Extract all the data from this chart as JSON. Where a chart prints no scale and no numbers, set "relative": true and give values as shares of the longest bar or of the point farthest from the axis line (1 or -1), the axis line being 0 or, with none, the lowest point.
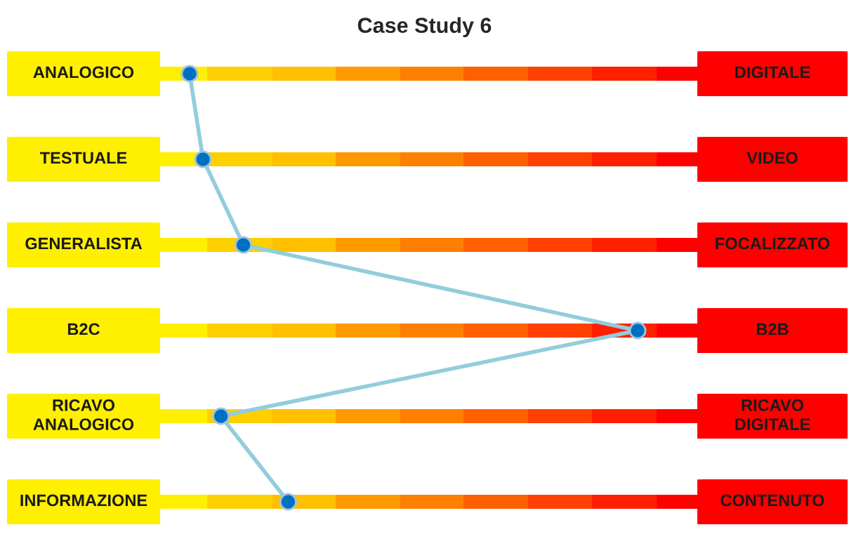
{
  "chart_data": {
    "type": "line",
    "title": "Case Study 6",
    "orientation": "horizontal",
    "relative": true,
    "marker": "circle",
    "line_style": "solid",
    "legend": false,
    "categories": [
      "ANALOGICO",
      "TESTUALE",
      "GENERALISTA",
      "B2C",
      "RICAVO\nANALOGICO",
      "INFORMAZIONE"
    ],
    "y2_categories": [
      "DIGITALE",
      "VIDEO",
      "FOCALIZZATO",
      "B2B",
      "RICAVO\nDIGITALE",
      "CONTENUTO"
    ],
    "series": [
      {
        "color": "#92cddc",
        "colors": [
          "#0070c0",
          "#0070c0",
          "#0070c0",
          "#0070c0",
          "#0070c0",
          "#0070c0"
        ],
        "values": [
          0,
          0.03,
          0.12,
          1,
          0.07,
          0.22
        ]
      }
    ]
  }
}
